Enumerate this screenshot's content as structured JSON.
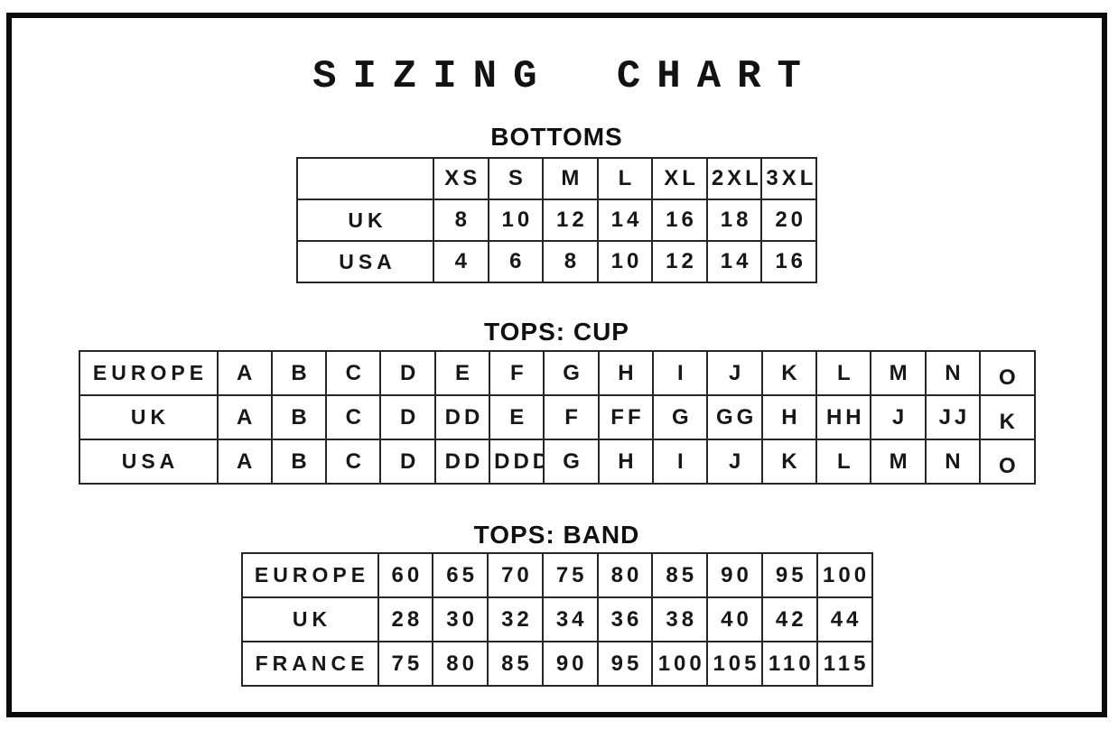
{
  "title": "SIZING CHART",
  "colors": {
    "ink": "#161616",
    "frame_border": "#0b0b0b",
    "table_grid": "#262626",
    "background": "#ffffff"
  },
  "tables": [
    {
      "heading": "BOTTOMS",
      "header": [
        "",
        "XS",
        "S",
        "M",
        "L",
        "XL",
        "2XL",
        "3XL"
      ],
      "rows": [
        {
          "label": "UK",
          "cells": [
            "8",
            "10",
            "12",
            "14",
            "16",
            "18",
            "20"
          ]
        },
        {
          "label": "USA",
          "cells": [
            "4",
            "6",
            "8",
            "10",
            "12",
            "14",
            "16"
          ]
        }
      ]
    },
    {
      "heading": "TOPS: CUP",
      "rows": [
        {
          "label": "EUROPE",
          "cells": [
            "A",
            "B",
            "C",
            "D",
            "E",
            "F",
            "G",
            "H",
            "I",
            "J",
            "K",
            "L",
            "M",
            "N",
            "O"
          ]
        },
        {
          "label": "UK",
          "cells": [
            "A",
            "B",
            "C",
            "D",
            "DD",
            "E",
            "F",
            "FF",
            "G",
            "GG",
            "H",
            "HH",
            "J",
            "JJ",
            "K"
          ]
        },
        {
          "label": "USA",
          "cells": [
            "A",
            "B",
            "C",
            "D",
            "DD",
            "DDD",
            "G",
            "H",
            "I",
            "J",
            "K",
            "L",
            "M",
            "N",
            "O"
          ]
        }
      ]
    },
    {
      "heading": "TOPS: BAND",
      "rows": [
        {
          "label": "EUROPE",
          "cells": [
            "60",
            "65",
            "70",
            "75",
            "80",
            "85",
            "90",
            "95",
            "100"
          ]
        },
        {
          "label": "UK",
          "cells": [
            "28",
            "30",
            "32",
            "34",
            "36",
            "38",
            "40",
            "42",
            "44"
          ]
        },
        {
          "label": "FRANCE",
          "cells": [
            "75",
            "80",
            "85",
            "90",
            "95",
            "100",
            "105",
            "110",
            "115"
          ]
        }
      ]
    }
  ]
}
